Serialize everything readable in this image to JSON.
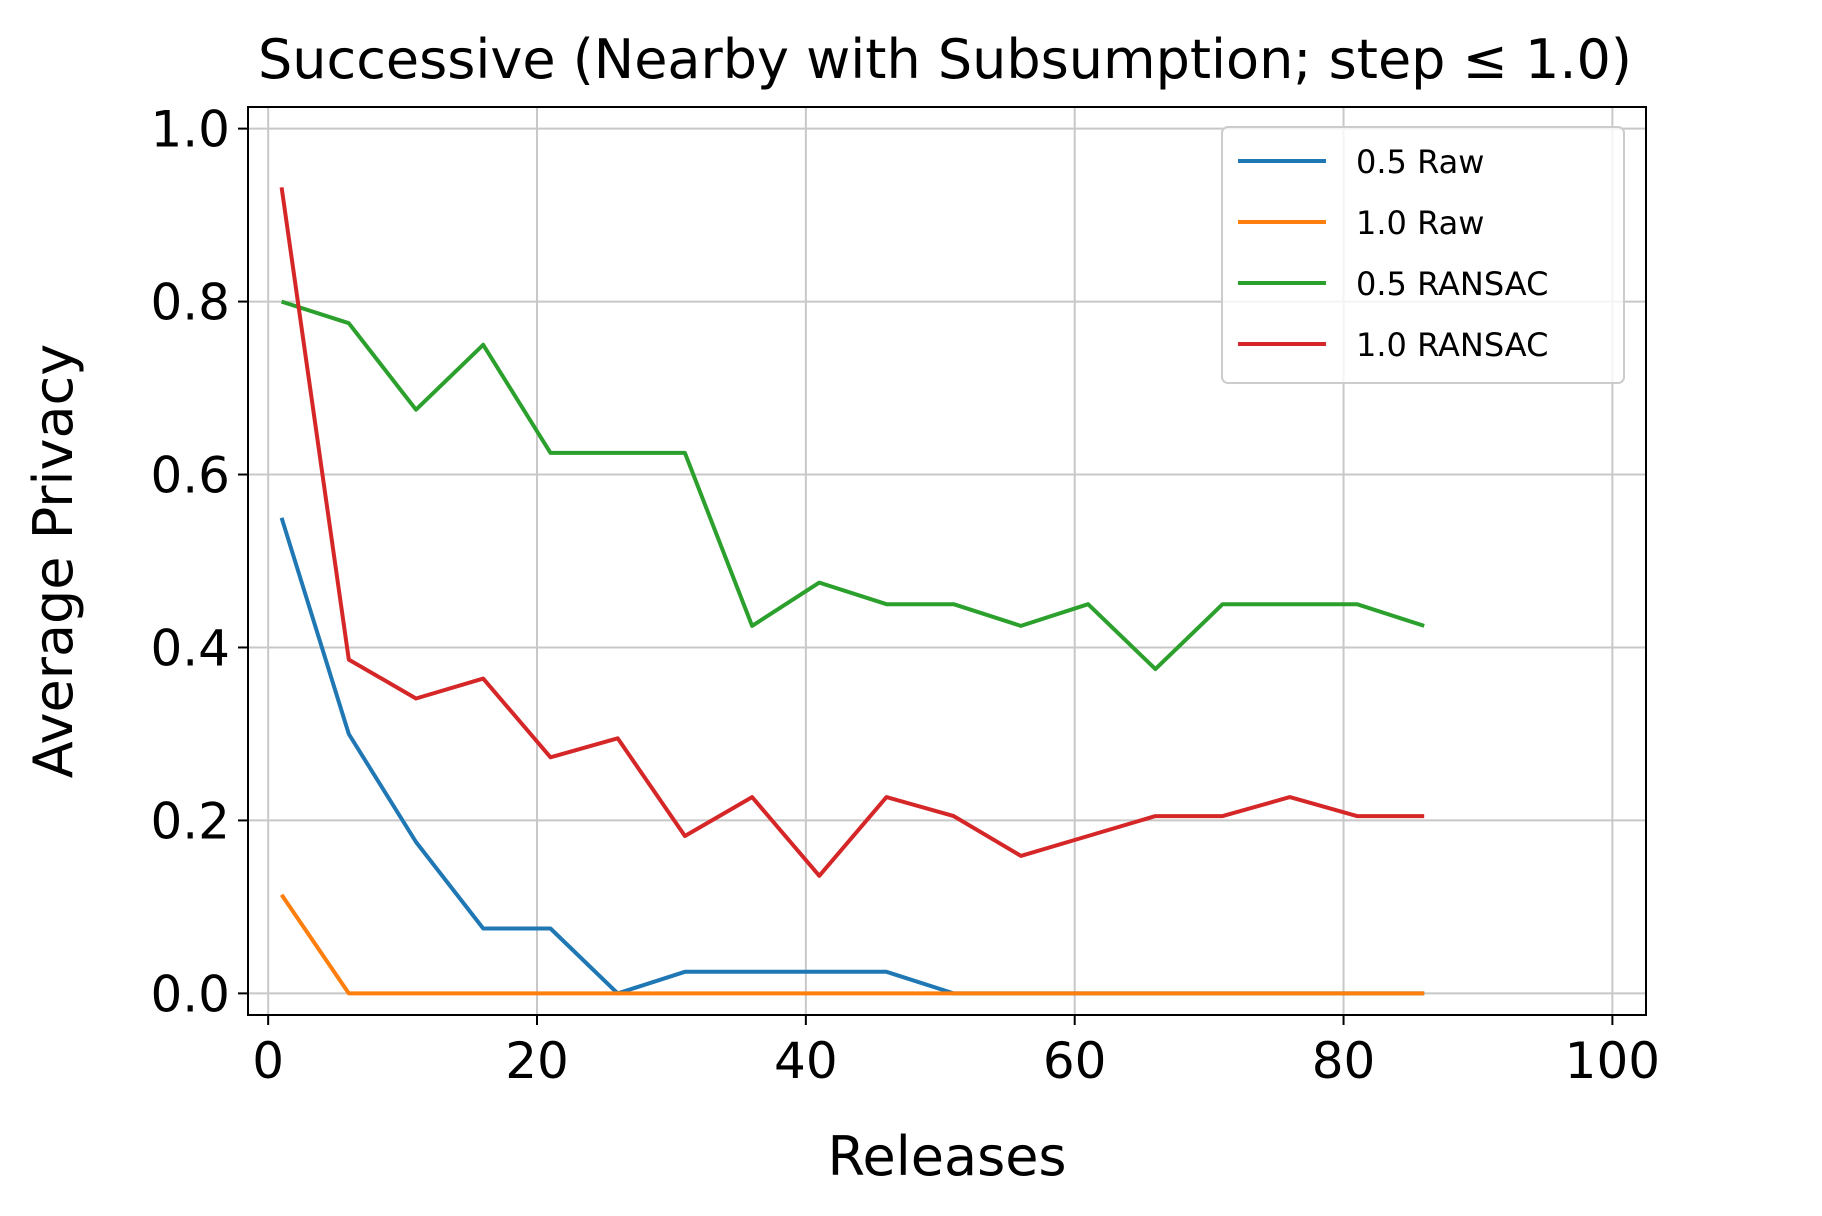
{
  "chart_data": {
    "type": "line",
    "title": "Successive (Nearby with Subsumption; step ≤ 1.0)",
    "xlabel": "Releases",
    "ylabel": "Average Privacy",
    "xlim": [
      -1.5,
      102.5
    ],
    "ylim": [
      -0.025,
      1.025
    ],
    "xticks": [
      0,
      20,
      40,
      60,
      80,
      100
    ],
    "yticks": [
      0.0,
      0.2,
      0.4,
      0.6,
      0.8,
      1.0
    ],
    "xtick_labels": [
      "0",
      "20",
      "40",
      "60",
      "80",
      "100"
    ],
    "ytick_labels": [
      "0.0",
      "0.2",
      "0.4",
      "0.6",
      "0.8",
      "1.0"
    ],
    "grid": true,
    "legend_position": "top-right",
    "x": [
      1,
      6,
      11,
      16,
      21,
      26,
      31,
      36,
      41,
      46,
      51,
      56,
      61,
      66,
      71,
      76,
      81,
      86
    ],
    "series": [
      {
        "name": "0.5 Raw",
        "color": "#1f77b4",
        "values": [
          0.55,
          0.3,
          0.175,
          0.075,
          0.075,
          0.0,
          0.025,
          0.025,
          0.025,
          0.025,
          0.0,
          0.0,
          0.0,
          0.0,
          0.0,
          0.0,
          0.0,
          0.0
        ]
      },
      {
        "name": "1.0 Raw",
        "color": "#ff7f0e",
        "values": [
          0.114,
          0.0,
          0.0,
          0.0,
          0.0,
          0.0,
          0.0,
          0.0,
          0.0,
          0.0,
          0.0,
          0.0,
          0.0,
          0.0,
          0.0,
          0.0,
          0.0,
          0.0
        ]
      },
      {
        "name": "0.5 RANSAC",
        "color": "#2ca02c",
        "values": [
          0.8,
          0.775,
          0.675,
          0.75,
          0.625,
          0.625,
          0.625,
          0.425,
          0.475,
          0.45,
          0.45,
          0.425,
          0.45,
          0.375,
          0.45,
          0.45,
          0.45,
          0.425
        ]
      },
      {
        "name": "1.0 RANSAC",
        "color": "#d62728",
        "values": [
          0.932,
          0.386,
          0.341,
          0.364,
          0.273,
          0.295,
          0.182,
          0.227,
          0.136,
          0.227,
          0.205,
          0.159,
          0.182,
          0.205,
          0.205,
          0.227,
          0.205,
          0.205
        ]
      }
    ]
  }
}
